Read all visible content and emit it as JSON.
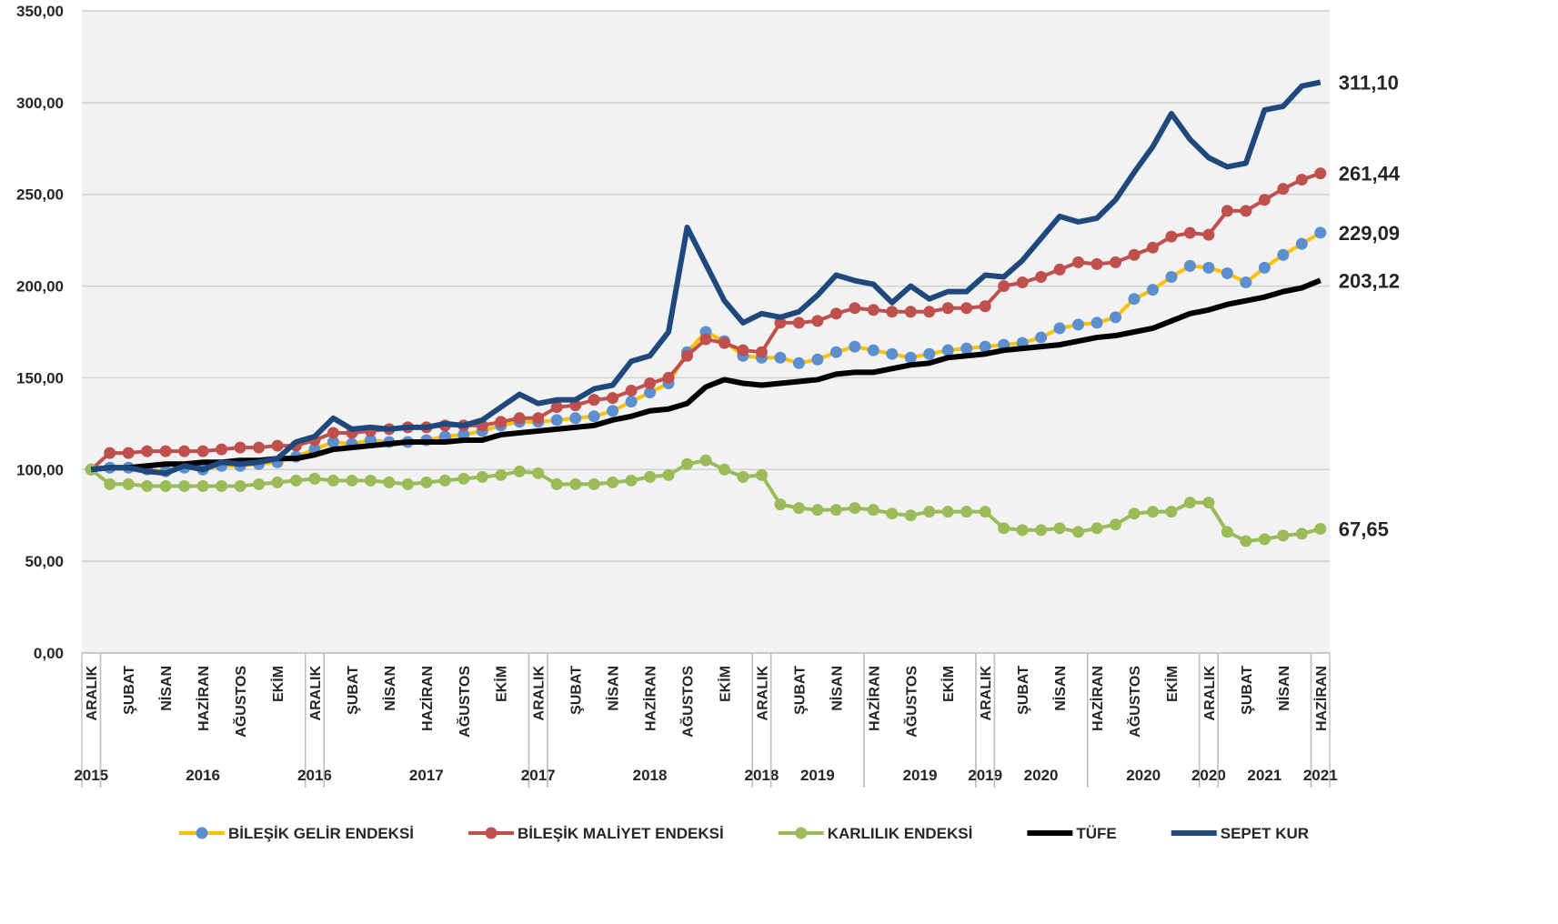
{
  "chart_data": {
    "type": "line",
    "categories": [
      "ARALIK",
      null,
      "ŞUBAT",
      null,
      "NİSAN",
      null,
      "HAZİRAN",
      null,
      "AĞUSTOS",
      null,
      "EKİM",
      null,
      "ARALIK",
      null,
      "ŞUBAT",
      null,
      "NİSAN",
      null,
      "HAZİRAN",
      null,
      "AĞUSTOS",
      null,
      "EKİM",
      null,
      "ARALIK",
      null,
      "ŞUBAT",
      null,
      "NİSAN",
      null,
      "HAZİRAN",
      null,
      "AĞUSTOS",
      null,
      "EKİM",
      null,
      "ARALIK",
      null,
      "ŞUBAT",
      null,
      "NİSAN",
      null,
      "HAZİRAN",
      null,
      "AĞUSTOS",
      null,
      "EKİM",
      null,
      "ARALIK",
      null,
      "ŞUBAT",
      null,
      "NİSAN",
      null,
      "HAZİRAN",
      null,
      "AĞUSTOS",
      null,
      "EKİM",
      null,
      "ARALIK",
      null,
      "ŞUBAT",
      null,
      "NİSAN",
      null,
      "HAZİRAN"
    ],
    "x_groups": [
      {
        "label": "2015",
        "start": 0,
        "end": 0
      },
      {
        "label": "2016",
        "start": 1,
        "end": 11
      },
      {
        "label": "2016",
        "start": 12,
        "end": 12
      },
      {
        "label": "2017",
        "start": 13,
        "end": 23
      },
      {
        "label": "2017",
        "start": 24,
        "end": 24
      },
      {
        "label": "2018",
        "start": 25,
        "end": 35
      },
      {
        "label": "2018",
        "start": 36,
        "end": 36
      },
      {
        "label": "2019",
        "start": 37,
        "end": 41
      },
      {
        "label": "2019",
        "start": 42,
        "end": 47
      },
      {
        "label": "2019",
        "start": 48,
        "end": 48
      },
      {
        "label": "2020",
        "start": 49,
        "end": 53
      },
      {
        "label": "2020",
        "start": 54,
        "end": 59
      },
      {
        "label": "2020",
        "start": 60,
        "end": 60
      },
      {
        "label": "2021",
        "start": 61,
        "end": 65
      },
      {
        "label": "2021",
        "start": 66,
        "end": 66
      }
    ],
    "ylim": [
      0,
      350
    ],
    "yticks": [
      {
        "value": 0,
        "label": "0,00"
      },
      {
        "value": 50,
        "label": "50,00"
      },
      {
        "value": 100,
        "label": "100,00"
      },
      {
        "value": 150,
        "label": "150,00"
      },
      {
        "value": 200,
        "label": "200,00"
      },
      {
        "value": 250,
        "label": "250,00"
      },
      {
        "value": 300,
        "label": "300,00"
      },
      {
        "value": 350,
        "label": "350,00"
      }
    ],
    "grid": true,
    "legend": "bottom",
    "series": [
      {
        "name": "BİLEŞİK GELİR ENDEKSİ",
        "color": "#ffc000",
        "marker_color": "#5b8fd0",
        "markers": true,
        "width": 4,
        "values": [
          100,
          101,
          101,
          100,
          99,
          101,
          100,
          102,
          102,
          103,
          104,
          107,
          111,
          115,
          114,
          116,
          115,
          115,
          116,
          118,
          119,
          121,
          124,
          126,
          126,
          127,
          128,
          129,
          132,
          137,
          142,
          147,
          164,
          175,
          170,
          162,
          161,
          161,
          158,
          160,
          164,
          167,
          165,
          163,
          161,
          163,
          165,
          166,
          167,
          168,
          169,
          172,
          177,
          179,
          180,
          183,
          193,
          198,
          205,
          211,
          210,
          207,
          202,
          210,
          217,
          223,
          229.09
        ],
        "value_labels": [
          null,
          null,
          null,
          null,
          null,
          null,
          null,
          null,
          null,
          null,
          null,
          null,
          null,
          null,
          null,
          null,
          null,
          null,
          null,
          null,
          null,
          null,
          null,
          null,
          null,
          null,
          null,
          null,
          null,
          null,
          null,
          null,
          null,
          null,
          null,
          null,
          null,
          null,
          null,
          null,
          null,
          null,
          null,
          null,
          null,
          null,
          null,
          null,
          null,
          null,
          null,
          null,
          null,
          null,
          null,
          null,
          null,
          null,
          null,
          null,
          null,
          null,
          null,
          null,
          null,
          null,
          "229,09"
        ]
      },
      {
        "name": "BİLEŞİK MALİYET ENDEKSİ",
        "color": "#c0504d",
        "marker_color": "#c0504d",
        "markers": true,
        "width": 4,
        "values": [
          100,
          109,
          109,
          110,
          110,
          110,
          110,
          111,
          112,
          112,
          113,
          113,
          116,
          120,
          120,
          121,
          122,
          123,
          123,
          124,
          124,
          124,
          126,
          128,
          128,
          134,
          135,
          138,
          139,
          143,
          147,
          150,
          162,
          171,
          169,
          165,
          164,
          180,
          180,
          181,
          185,
          188,
          187,
          186,
          186,
          186,
          188,
          188,
          189,
          200,
          202,
          205,
          209,
          213,
          212,
          213,
          217,
          221,
          227,
          229,
          228,
          241,
          241,
          247,
          253,
          258,
          261.44
        ],
        "value_labels": [
          null,
          null,
          null,
          null,
          null,
          null,
          null,
          null,
          null,
          null,
          null,
          null,
          null,
          null,
          null,
          null,
          null,
          null,
          null,
          null,
          null,
          null,
          null,
          null,
          null,
          null,
          null,
          null,
          null,
          null,
          null,
          null,
          null,
          null,
          null,
          null,
          null,
          null,
          null,
          null,
          null,
          null,
          null,
          null,
          null,
          null,
          null,
          null,
          null,
          null,
          null,
          null,
          null,
          null,
          null,
          null,
          null,
          null,
          null,
          null,
          null,
          null,
          null,
          null,
          null,
          null,
          "261,44"
        ]
      },
      {
        "name": "KARLILIK ENDEKSİ",
        "color": "#9bbb59",
        "marker_color": "#9bbb59",
        "markers": true,
        "width": 4,
        "values": [
          100,
          92,
          92,
          91,
          91,
          91,
          91,
          91,
          91,
          92,
          93,
          94,
          95,
          94,
          94,
          94,
          93,
          92,
          93,
          94,
          95,
          96,
          97,
          99,
          98,
          92,
          92,
          92,
          93,
          94,
          96,
          97,
          103,
          105,
          100,
          96,
          97,
          81,
          79,
          78,
          78,
          79,
          78,
          76,
          75,
          77,
          77,
          77,
          77,
          68,
          67,
          67,
          68,
          66,
          68,
          70,
          76,
          77,
          77,
          82,
          82,
          66,
          61,
          62,
          64,
          65,
          67.65
        ],
        "value_labels": [
          null,
          null,
          null,
          null,
          null,
          null,
          null,
          null,
          null,
          null,
          null,
          null,
          null,
          null,
          null,
          null,
          null,
          null,
          null,
          null,
          null,
          null,
          null,
          null,
          null,
          null,
          null,
          null,
          null,
          null,
          null,
          null,
          null,
          null,
          null,
          null,
          null,
          null,
          null,
          null,
          null,
          null,
          null,
          null,
          null,
          null,
          null,
          null,
          null,
          null,
          null,
          null,
          null,
          null,
          null,
          null,
          null,
          null,
          null,
          null,
          null,
          null,
          null,
          null,
          null,
          null,
          "67,65"
        ]
      },
      {
        "name": "TÜFE",
        "color": "#000000",
        "marker_color": "#000000",
        "markers": false,
        "width": 6,
        "values": [
          100,
          101,
          101,
          102,
          103,
          103,
          104,
          104,
          105,
          105,
          106,
          106,
          108,
          111,
          112,
          113,
          114,
          115,
          115,
          115,
          116,
          116,
          119,
          120,
          121,
          122,
          123,
          124,
          127,
          129,
          132,
          133,
          136,
          145,
          149,
          147,
          146,
          147,
          148,
          149,
          152,
          153,
          153,
          155,
          157,
          158,
          161,
          162,
          163,
          165,
          166,
          167,
          168,
          170,
          172,
          173,
          175,
          177,
          181,
          185,
          187,
          190,
          192,
          194,
          197,
          199,
          203.12
        ],
        "value_labels": [
          null,
          null,
          null,
          null,
          null,
          null,
          null,
          null,
          null,
          null,
          null,
          null,
          null,
          null,
          null,
          null,
          null,
          null,
          null,
          null,
          null,
          null,
          null,
          null,
          null,
          null,
          null,
          null,
          null,
          null,
          null,
          null,
          null,
          null,
          null,
          null,
          null,
          null,
          null,
          null,
          null,
          null,
          null,
          null,
          null,
          null,
          null,
          null,
          null,
          null,
          null,
          null,
          null,
          null,
          null,
          null,
          null,
          null,
          null,
          null,
          null,
          null,
          null,
          null,
          null,
          null,
          "203,12"
        ]
      },
      {
        "name": "SEPET KUR",
        "color": "#1f497d",
        "marker_color": "#1f497d",
        "markers": false,
        "width": 6,
        "values": [
          100,
          101,
          101,
          99,
          98,
          102,
          100,
          104,
          103,
          104,
          106,
          115,
          118,
          128,
          122,
          123,
          122,
          123,
          123,
          125,
          124,
          127,
          134,
          141,
          136,
          138,
          138,
          144,
          146,
          159,
          162,
          175,
          232,
          212,
          192,
          180,
          185,
          183,
          186,
          195,
          206,
          203,
          201,
          191,
          200,
          193,
          197,
          197,
          206,
          205,
          214,
          226,
          238,
          235,
          237,
          247,
          262,
          276,
          294,
          280,
          270,
          265,
          267,
          296,
          298,
          309,
          311.1
        ],
        "value_labels": [
          null,
          null,
          null,
          null,
          null,
          null,
          null,
          null,
          null,
          null,
          null,
          null,
          null,
          null,
          null,
          null,
          null,
          null,
          null,
          null,
          null,
          null,
          null,
          null,
          null,
          null,
          null,
          null,
          null,
          null,
          null,
          null,
          null,
          null,
          null,
          null,
          null,
          null,
          null,
          null,
          null,
          null,
          null,
          null,
          null,
          null,
          null,
          null,
          null,
          null,
          null,
          null,
          null,
          null,
          null,
          null,
          null,
          null,
          null,
          null,
          null,
          null,
          null,
          null,
          null,
          null,
          "311,10"
        ]
      }
    ]
  }
}
